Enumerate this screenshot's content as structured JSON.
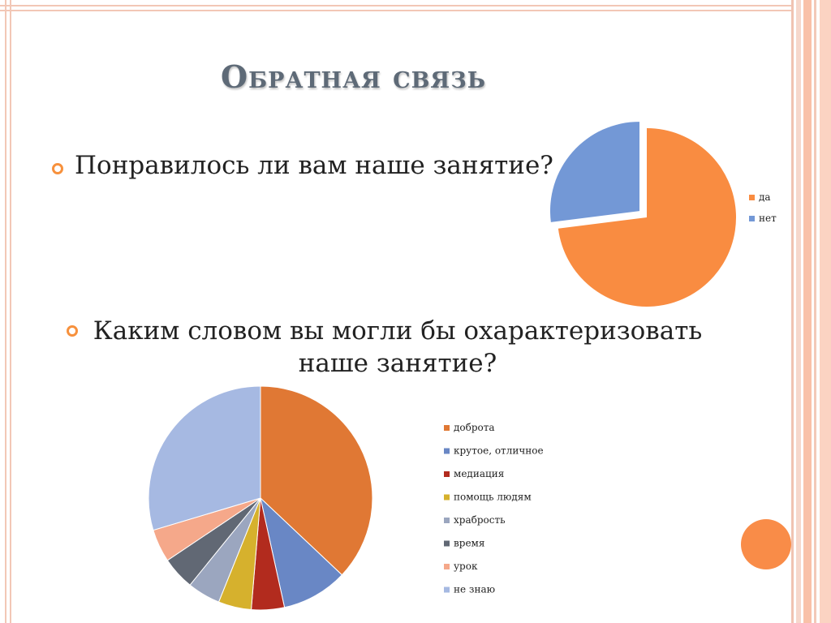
{
  "slide": {
    "title": "Обратная связь",
    "question1": "Понравилось ли вам наше занятие?",
    "question2": "Каким словом вы могли бы охарактеризовать наше занятие?"
  },
  "chart_data": [
    {
      "type": "pie",
      "categories": [
        "да",
        "нет"
      ],
      "values": [
        73,
        27
      ],
      "colors": [
        "#f98c41",
        "#7398d6"
      ],
      "exploded": [
        false,
        true
      ],
      "legend": "right"
    },
    {
      "type": "pie",
      "categories": [
        "доброта",
        "крутое, отличное",
        "медиация",
        "помощь людям",
        "храбрость",
        "время",
        "урок",
        "не знаю"
      ],
      "values": [
        35,
        9,
        4.5,
        4.5,
        4.5,
        4.5,
        4.5,
        28
      ],
      "colors": [
        "#e07834",
        "#6987c5",
        "#b22b1e",
        "#d6b12d",
        "#9ba6bf",
        "#616874",
        "#f5a88a",
        "#a6b9e2"
      ],
      "legend": "right"
    }
  ]
}
